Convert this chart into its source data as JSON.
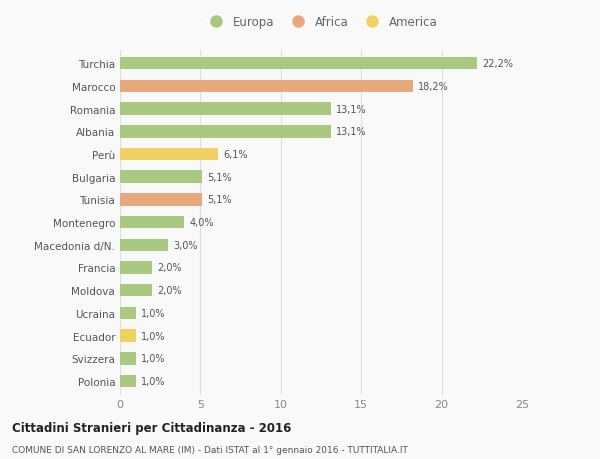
{
  "categories": [
    "Turchia",
    "Marocco",
    "Romania",
    "Albania",
    "Perù",
    "Bulgaria",
    "Tunisia",
    "Montenegro",
    "Macedonia d/N.",
    "Francia",
    "Moldova",
    "Ucraina",
    "Ecuador",
    "Svizzera",
    "Polonia"
  ],
  "values": [
    22.2,
    18.2,
    13.1,
    13.1,
    6.1,
    5.1,
    5.1,
    4.0,
    3.0,
    2.0,
    2.0,
    1.0,
    1.0,
    1.0,
    1.0
  ],
  "labels": [
    "22,2%",
    "18,2%",
    "13,1%",
    "13,1%",
    "6,1%",
    "5,1%",
    "5,1%",
    "4,0%",
    "3,0%",
    "2,0%",
    "2,0%",
    "1,0%",
    "1,0%",
    "1,0%",
    "1,0%"
  ],
  "continents": [
    "Europa",
    "Africa",
    "Europa",
    "Europa",
    "America",
    "Europa",
    "Africa",
    "Europa",
    "Europa",
    "Europa",
    "Europa",
    "Europa",
    "America",
    "Europa",
    "Europa"
  ],
  "colors": {
    "Europa": "#a8c97f",
    "Africa": "#e8a87c",
    "America": "#f0d060"
  },
  "xlim": [
    0,
    25
  ],
  "xticks": [
    0,
    5,
    10,
    15,
    20,
    25
  ],
  "title": "Cittadini Stranieri per Cittadinanza - 2016",
  "subtitle": "COMUNE DI SAN LORENZO AL MARE (IM) - Dati ISTAT al 1° gennaio 2016 - TUTTITALIA.IT",
  "background_color": "#f9f9f9",
  "grid_color": "#dddddd",
  "bar_height": 0.55,
  "legend_labels": [
    "Europa",
    "Africa",
    "America"
  ]
}
